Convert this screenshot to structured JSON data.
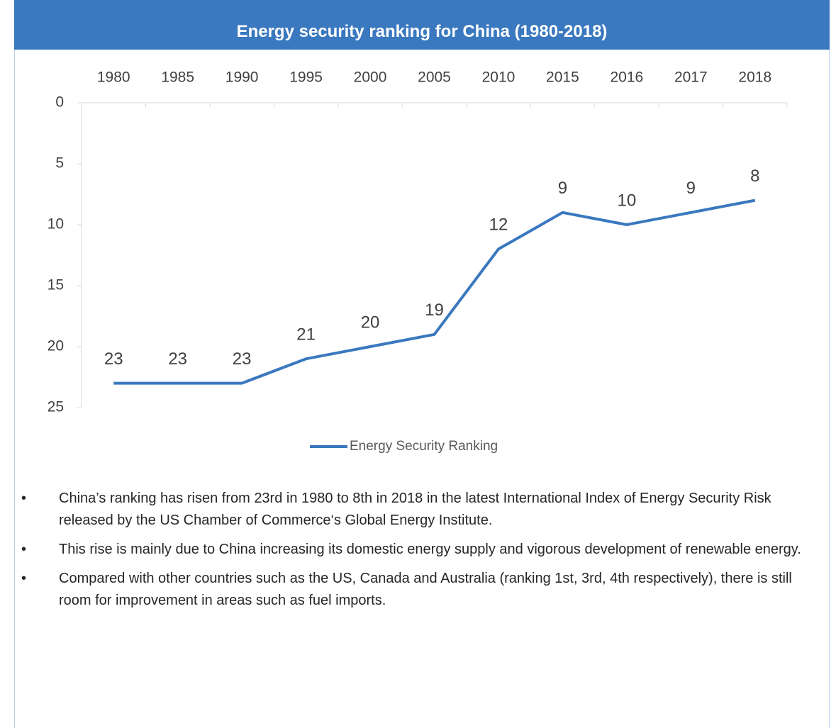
{
  "chart_data": {
    "type": "line",
    "title": "Energy security ranking for China (1980-2018)",
    "categories": [
      "1980",
      "1985",
      "1990",
      "1995",
      "2000",
      "2005",
      "2010",
      "2015",
      "2016",
      "2017",
      "2018"
    ],
    "series": [
      {
        "name": "Energy Security Ranking",
        "color": "#3a78bf",
        "values": [
          23,
          23,
          23,
          21,
          20,
          19,
          12,
          9,
          10,
          9,
          8
        ]
      }
    ],
    "ylim": [
      0,
      25
    ],
    "yticks": [
      0,
      5,
      10,
      15,
      20,
      25
    ],
    "y_reversed": true,
    "data_labels": true,
    "legend": "bottom"
  },
  "bullets": [
    "China’s ranking has risen from 23rd in 1980 to 8th in 2018 in the latest International Index of Energy Security Risk released by the US Chamber of Commerce‘s Global Energy Institute.",
    "This rise is mainly due to China increasing its domestic energy supply and vigorous development of renewable energy.",
    "Compared with other countries such as the US, Canada and Australia (ranking 1st, 3rd, 4th respectively), there is still room for improvement in areas such as fuel imports."
  ]
}
